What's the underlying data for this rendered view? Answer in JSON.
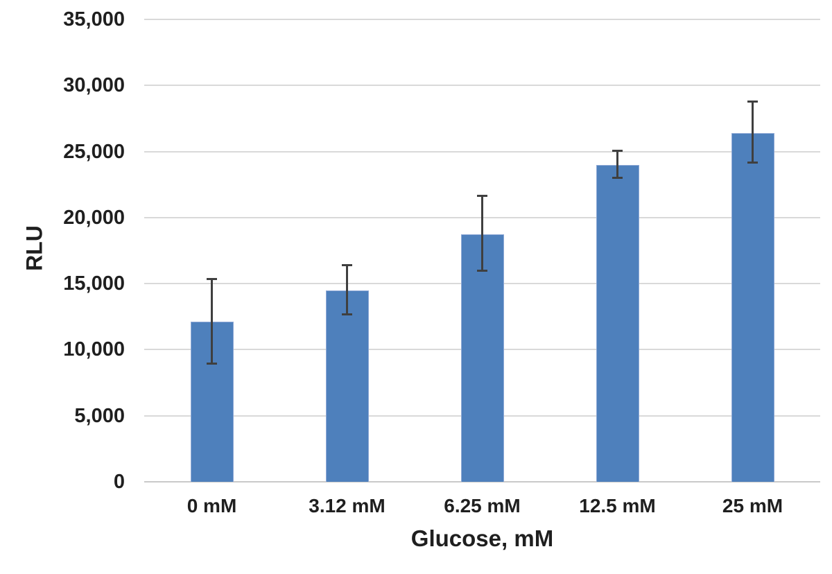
{
  "chart_data": {
    "type": "bar",
    "title": "",
    "xlabel": "Glucose, mM",
    "ylabel": "RLU",
    "categories": [
      "0 mM",
      "3.12 mM",
      "6.25 mM",
      "12.5 mM",
      "25 mM"
    ],
    "series": [
      {
        "name": "RLU",
        "values": [
          12100,
          14500,
          18750,
          24000,
          26400
        ],
        "error_high": [
          15400,
          16400,
          21650,
          25100,
          28800
        ],
        "error_low": [
          8900,
          12650,
          15950,
          23000,
          24150
        ]
      }
    ],
    "ylim": [
      0,
      35000
    ],
    "ytick_step": 5000,
    "ytick_labels": [
      "0",
      "5,000",
      "10,000",
      "15,000",
      "20,000",
      "25,000",
      "30,000",
      "35,000"
    ],
    "grid": true,
    "legend": "none",
    "colors": {
      "bar_fill": "#4e80bc",
      "bar_border": "#8fa9d6",
      "error_bar": "#3f3f3f",
      "gridline": "#d9d9d9",
      "axis_line": "#c9c9c9",
      "text": "#1f1f1f",
      "background": "#ffffff"
    }
  }
}
